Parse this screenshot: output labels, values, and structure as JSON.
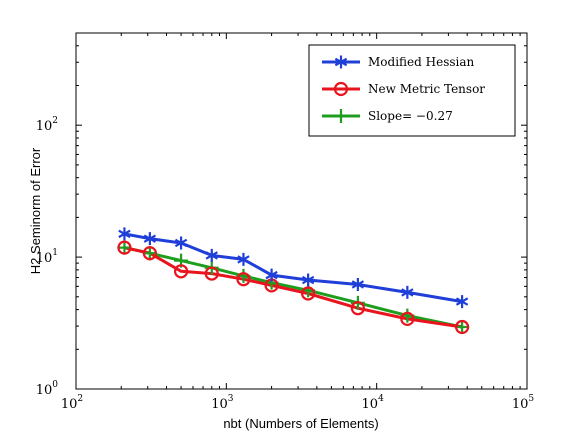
{
  "chart_data": {
    "type": "line",
    "xscale": "log",
    "yscale": "log",
    "xlim": [
      100,
      100000
    ],
    "ylim": [
      1,
      500
    ],
    "xlabel": "nbt (Numbers of Elements)",
    "ylabel": "H2 Seminorm of Error",
    "x_ticks": [
      {
        "base": "10",
        "exp": "2",
        "value": 100
      },
      {
        "base": "10",
        "exp": "3",
        "value": 1000
      },
      {
        "base": "10",
        "exp": "4",
        "value": 10000
      },
      {
        "base": "10",
        "exp": "5",
        "value": 100000
      }
    ],
    "y_ticks": [
      {
        "base": "10",
        "exp": "0",
        "value": 1
      },
      {
        "base": "10",
        "exp": "1",
        "value": 10
      },
      {
        "base": "10",
        "exp": "2",
        "value": 100
      }
    ],
    "grid": false,
    "legend_position": "top-right",
    "series": [
      {
        "name": "Modified Hessian",
        "color": "#1f3fd8",
        "marker": "asterisk",
        "x": [
          210,
          310,
          500,
          800,
          1300,
          2000,
          3500,
          7500,
          16000,
          37000
        ],
        "y": [
          15.0,
          13.8,
          12.8,
          10.3,
          9.6,
          7.3,
          6.7,
          6.2,
          5.4,
          4.6
        ]
      },
      {
        "name": "New Metric Tensor",
        "color": "#e8141e",
        "marker": "circle",
        "x": [
          210,
          310,
          500,
          800,
          1300,
          2000,
          3500,
          7500,
          16000,
          37000
        ],
        "y": [
          11.8,
          10.7,
          7.8,
          7.5,
          6.8,
          6.1,
          5.3,
          4.1,
          3.4,
          2.95
        ]
      },
      {
        "name": "Slope= −0.27",
        "color": "#1e9e1e",
        "marker": "plus",
        "x": [
          210,
          310,
          500,
          800,
          1300,
          2000,
          3500,
          7500,
          16000,
          37000
        ],
        "y": [
          11.8,
          10.7,
          9.4,
          8.3,
          7.2,
          6.4,
          5.6,
          4.5,
          3.6,
          2.95
        ]
      }
    ]
  }
}
